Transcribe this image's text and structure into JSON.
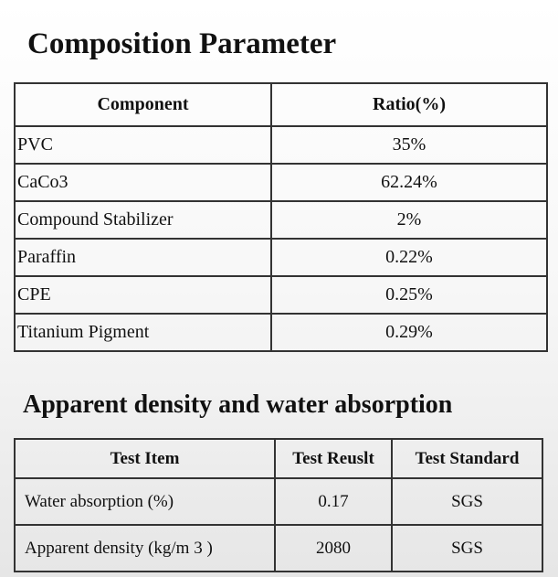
{
  "composition": {
    "title": "Composition Parameter",
    "table": {
      "headers": [
        "Component",
        "Ratio(%)"
      ],
      "rows": [
        [
          "PVC",
          "35%"
        ],
        [
          "CaCo3",
          "62.24%"
        ],
        [
          "Compound Stabilizer",
          "2%"
        ],
        [
          "Paraffin",
          "0.22%"
        ],
        [
          "CPE",
          "0.25%"
        ],
        [
          "Titanium Pigment",
          "0.29%"
        ]
      ]
    }
  },
  "density": {
    "title": "Apparent density and water absorption",
    "table": {
      "headers": [
        "Test Item",
        "Test Reuslt",
        "Test Standard"
      ],
      "rows": [
        [
          "Water absorption (%)",
          "0.17",
          "SGS"
        ],
        [
          "Apparent density (kg/m 3 )",
          "2080",
          "SGS"
        ]
      ]
    }
  }
}
